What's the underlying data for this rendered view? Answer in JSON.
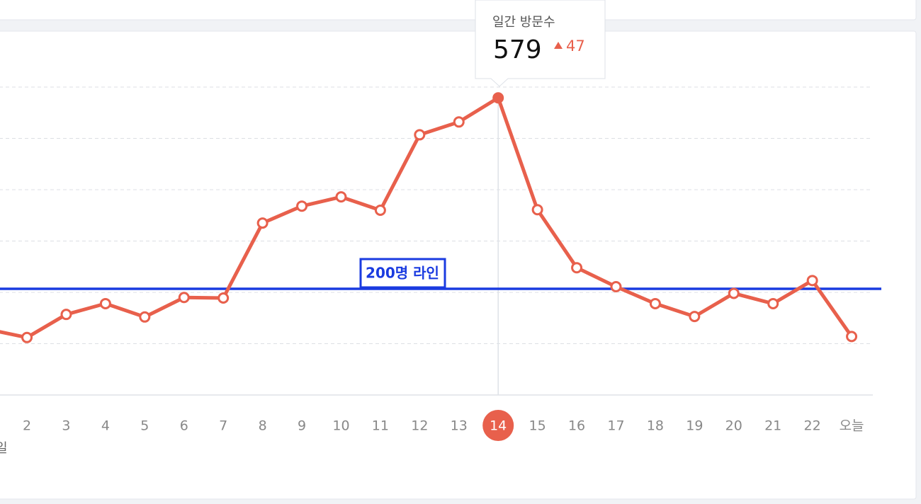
{
  "chart_data": {
    "type": "line",
    "categories": [
      null,
      "2",
      "3",
      "4",
      "5",
      "6",
      "7",
      "8",
      "9",
      "10",
      "11",
      "12",
      "13",
      "14",
      "15",
      "16",
      "17",
      "18",
      "19",
      "20",
      "21",
      "22",
      "오늘"
    ],
    "values": [
      128,
      112,
      157,
      178,
      152,
      190,
      189,
      335,
      368,
      386,
      360,
      507,
      532,
      579,
      361,
      248,
      211,
      178,
      153,
      198,
      178,
      223,
      114
    ],
    "color": "#e8604c",
    "ylim": [
      0,
      600
    ],
    "yticks": [
      0,
      100,
      200,
      300,
      400,
      500,
      600
    ],
    "grid": true,
    "x_label": "일",
    "reference_line": {
      "value": 200,
      "label": "200명 라인",
      "color": "#1a3be0"
    },
    "highlight_index": 13,
    "tooltip": {
      "title": "일간 방문수",
      "change": 47
    }
  }
}
